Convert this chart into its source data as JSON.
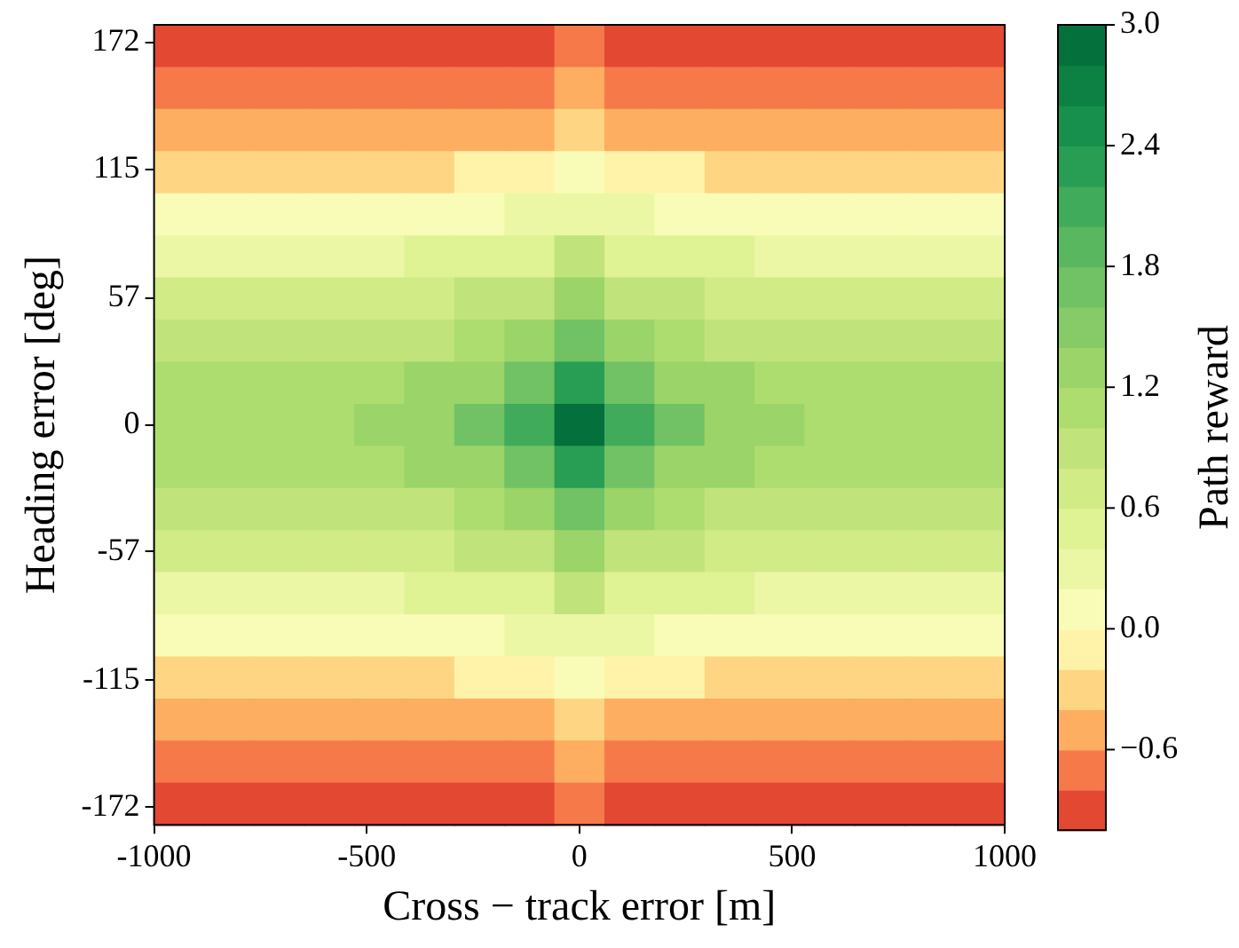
{
  "chart_data": {
    "type": "heatmap",
    "xlabel": "Cross − track error [m]",
    "ylabel": "Heading error [deg]",
    "clabel": "Path reward",
    "cells": [
      [
        -1.0,
        -1.0,
        -1.0,
        -1.0,
        -1.0,
        -0.9,
        -0.9,
        -0.9,
        -0.8,
        -0.9,
        -0.9,
        -0.9,
        -1.0,
        -1.0,
        -1.0,
        -1.0,
        -1.0
      ],
      [
        -0.8,
        -0.8,
        -0.8,
        -0.8,
        -0.8,
        -0.8,
        -0.8,
        -0.7,
        -0.6,
        -0.7,
        -0.8,
        -0.8,
        -0.8,
        -0.8,
        -0.8,
        -0.8,
        -0.8
      ],
      [
        -0.6,
        -0.6,
        -0.6,
        -0.6,
        -0.6,
        -0.6,
        -0.5,
        -0.5,
        -0.4,
        -0.5,
        -0.5,
        -0.6,
        -0.6,
        -0.6,
        -0.6,
        -0.6,
        -0.6
      ],
      [
        -0.3,
        -0.3,
        -0.3,
        -0.3,
        -0.3,
        -0.3,
        -0.2,
        -0.2,
        0.0,
        -0.2,
        -0.2,
        -0.3,
        -0.3,
        -0.3,
        -0.3,
        -0.3,
        -0.3
      ],
      [
        0.0,
        0.0,
        0.0,
        0.0,
        0.0,
        0.0,
        0.1,
        0.2,
        0.3,
        0.2,
        0.1,
        0.0,
        0.0,
        0.0,
        0.0,
        0.0,
        0.0
      ],
      [
        0.3,
        0.3,
        0.3,
        0.3,
        0.3,
        0.4,
        0.4,
        0.5,
        0.8,
        0.5,
        0.4,
        0.4,
        0.3,
        0.3,
        0.3,
        0.3,
        0.3
      ],
      [
        0.6,
        0.6,
        0.6,
        0.6,
        0.6,
        0.7,
        0.8,
        0.9,
        1.2,
        0.9,
        0.8,
        0.7,
        0.6,
        0.6,
        0.6,
        0.6,
        0.6
      ],
      [
        0.8,
        0.8,
        0.8,
        0.8,
        0.9,
        0.9,
        1.1,
        1.3,
        1.7,
        1.3,
        1.1,
        0.9,
        0.9,
        0.8,
        0.8,
        0.8,
        0.8
      ],
      [
        1.0,
        1.0,
        1.0,
        1.0,
        1.1,
        1.2,
        1.3,
        1.7,
        2.3,
        1.7,
        1.3,
        1.2,
        1.1,
        1.0,
        1.0,
        1.0,
        1.0
      ],
      [
        1.0,
        1.0,
        1.1,
        1.1,
        1.2,
        1.3,
        1.6,
        2.1,
        3.0,
        2.1,
        1.6,
        1.3,
        1.2,
        1.1,
        1.1,
        1.0,
        1.0
      ],
      [
        1.0,
        1.0,
        1.0,
        1.0,
        1.1,
        1.2,
        1.3,
        1.7,
        2.3,
        1.7,
        1.3,
        1.2,
        1.1,
        1.0,
        1.0,
        1.0,
        1.0
      ],
      [
        0.8,
        0.8,
        0.8,
        0.8,
        0.9,
        0.9,
        1.1,
        1.3,
        1.7,
        1.3,
        1.1,
        0.9,
        0.9,
        0.8,
        0.8,
        0.8,
        0.8
      ],
      [
        0.6,
        0.6,
        0.6,
        0.6,
        0.6,
        0.7,
        0.8,
        0.9,
        1.2,
        0.9,
        0.8,
        0.7,
        0.6,
        0.6,
        0.6,
        0.6,
        0.6
      ],
      [
        0.3,
        0.3,
        0.3,
        0.3,
        0.3,
        0.4,
        0.4,
        0.5,
        0.8,
        0.5,
        0.4,
        0.4,
        0.3,
        0.3,
        0.3,
        0.3,
        0.3
      ],
      [
        0.0,
        0.0,
        0.0,
        0.0,
        0.0,
        0.0,
        0.1,
        0.2,
        0.3,
        0.2,
        0.1,
        0.0,
        0.0,
        0.0,
        0.0,
        0.0,
        0.0
      ],
      [
        -0.3,
        -0.3,
        -0.3,
        -0.3,
        -0.3,
        -0.3,
        -0.2,
        -0.2,
        0.0,
        -0.2,
        -0.2,
        -0.3,
        -0.3,
        -0.3,
        -0.3,
        -0.3,
        -0.3
      ],
      [
        -0.6,
        -0.6,
        -0.6,
        -0.6,
        -0.6,
        -0.6,
        -0.5,
        -0.5,
        -0.4,
        -0.5,
        -0.5,
        -0.6,
        -0.6,
        -0.6,
        -0.6,
        -0.6,
        -0.6
      ],
      [
        -0.8,
        -0.8,
        -0.8,
        -0.8,
        -0.8,
        -0.8,
        -0.8,
        -0.7,
        -0.6,
        -0.7,
        -0.8,
        -0.8,
        -0.8,
        -0.8,
        -0.8,
        -0.8,
        -0.8
      ],
      [
        -1.0,
        -1.0,
        -1.0,
        -1.0,
        -1.0,
        -0.9,
        -0.9,
        -0.9,
        -0.8,
        -0.9,
        -0.9,
        -0.9,
        -1.0,
        -1.0,
        -1.0,
        -1.0,
        -1.0
      ]
    ],
    "clim": [
      -1.0,
      3.0
    ],
    "cticks": [
      {
        "value": -0.6,
        "label": "−0.6"
      },
      {
        "value": 0.0,
        "label": "0.0"
      },
      {
        "value": 0.6,
        "label": "0.6"
      },
      {
        "value": 1.2,
        "label": "1.2"
      },
      {
        "value": 1.8,
        "label": "1.8"
      },
      {
        "value": 2.4,
        "label": "2.4"
      },
      {
        "value": 3.0,
        "label": "3.0"
      }
    ],
    "xlim": [
      -1000,
      1000
    ],
    "xticks": [
      -1000,
      -500,
      0,
      500,
      1000
    ],
    "ylim": [
      -180,
      180
    ],
    "yticks": [
      -172,
      -115,
      -57,
      0,
      57,
      115,
      172
    ]
  }
}
